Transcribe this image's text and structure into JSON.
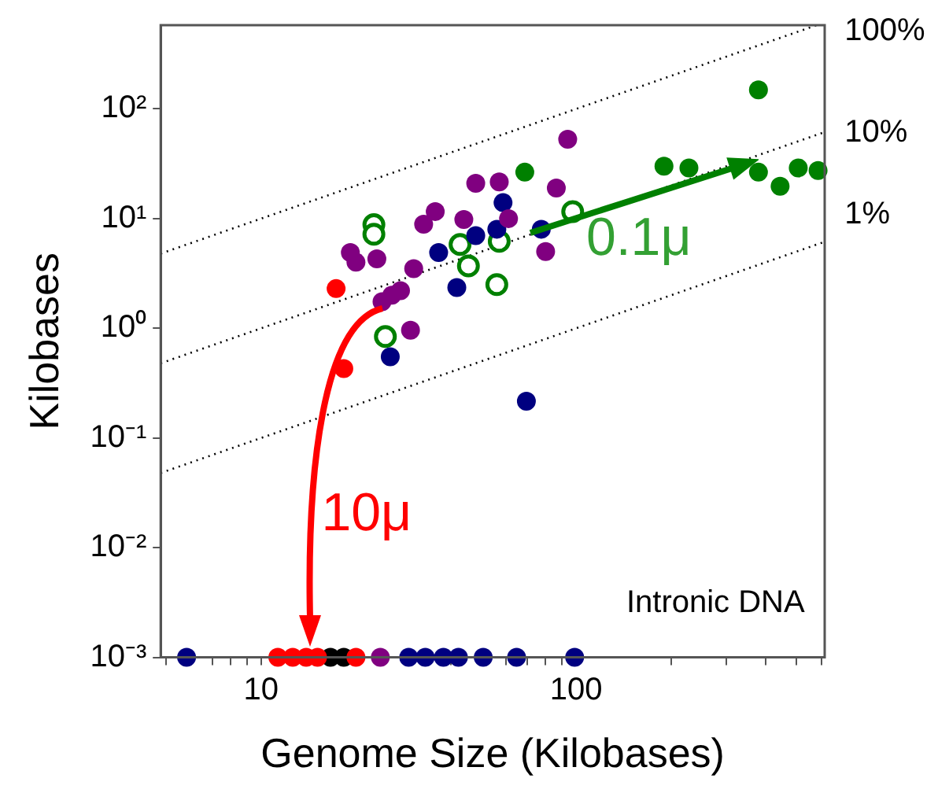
{
  "chart_data": {
    "type": "scatter",
    "xlabel": "Genome Size (Kilobases)",
    "ylabel": "Kilobases",
    "log": "xy",
    "grid": false,
    "legend": false,
    "marker": "circle",
    "xlim": [
      4.8,
      615
    ],
    "ylim": [
      0.001,
      580
    ],
    "xticks": [
      {
        "value": 5,
        "label": null
      },
      {
        "value": 6,
        "label": null
      },
      {
        "value": 7,
        "label": null
      },
      {
        "value": 8,
        "label": null
      },
      {
        "value": 9,
        "label": null
      },
      10,
      {
        "value": 20,
        "label": null
      },
      {
        "value": 30,
        "label": null
      },
      {
        "value": 40,
        "label": null
      },
      {
        "value": 50,
        "label": null
      },
      {
        "value": 60,
        "label": null
      },
      {
        "value": 70,
        "label": null
      },
      {
        "value": 80,
        "label": null
      },
      {
        "value": 90,
        "label": null
      },
      100,
      {
        "value": 200,
        "label": null
      },
      {
        "value": 300,
        "label": null
      },
      {
        "value": 400,
        "label": null
      },
      {
        "value": 500,
        "label": null
      },
      {
        "value": 600,
        "label": null
      }
    ],
    "yticks": [
      {
        "value": 0.001,
        "label": "10⁻³"
      },
      {
        "value": 0.01,
        "label": "10⁻²"
      },
      {
        "value": 0.1,
        "label": "10⁻¹"
      },
      {
        "value": 1,
        "label": "10⁰"
      },
      {
        "value": 10,
        "label": "10¹"
      },
      {
        "value": 100,
        "label": "10²"
      }
    ],
    "series": [
      {
        "type": "line",
        "color": "#000000",
        "line_style": "dotted",
        "marker": "none",
        "x": [
          4.8,
          580
        ],
        "values": [
          4.8,
          580
        ]
      },
      {
        "type": "line",
        "color": "#000000",
        "line_style": "dotted",
        "marker": "none",
        "x": [
          4.8,
          615
        ],
        "values": [
          0.48,
          61.5
        ]
      },
      {
        "type": "line",
        "color": "#000000",
        "line_style": "dotted",
        "marker": "none",
        "x": [
          4.8,
          615
        ],
        "values": [
          0.048,
          6.15
        ]
      },
      {
        "color": "#800080",
        "x": [
          94,
          48,
          57,
          86.5,
          61,
          44,
          35.7,
          32.8,
          80,
          19.2,
          20,
          23.3,
          30.5,
          27.7,
          26,
          24.2,
          29.8,
          23.9
        ],
        "values": [
          53,
          21,
          21.6,
          19,
          10,
          9.8,
          11.6,
          8.9,
          5,
          4.9,
          4,
          4.3,
          3.5,
          2.2,
          2,
          1.75,
          0.96,
          0.001
        ]
      },
      {
        "color": "#000080",
        "x": [
          58.6,
          48,
          56,
          77.5,
          36.6,
          41.8,
          25.7,
          69.5,
          5.8,
          29.4,
          33.2,
          37.9,
          42.3,
          47.8,
          50.7,
          64.7,
          98.9
        ],
        "values": [
          14,
          7,
          8,
          8,
          4.9,
          2.35,
          0.55,
          0.216,
          0.001,
          0.001,
          0.001,
          0.001,
          0.001,
          null,
          0.001,
          0.001,
          0.001
        ]
      },
      {
        "color": "#008000",
        "x": [
          68.7,
          379,
          190,
          228,
          379,
          444,
          507,
          586
        ],
        "values": [
          26.5,
          149,
          30,
          29,
          26.5,
          19.7,
          29,
          27.4
        ]
      },
      {
        "color": "#008000",
        "marker": "circle",
        "x": [
          22.8,
          22.8,
          42.8,
          57,
          45.5,
          56,
          43.8,
          24.8,
          97.5
        ],
        "values": [
          8.8,
          7.2,
          5.8,
          6.2,
          3.7,
          2.5,
          null,
          0.84,
          11.6
        ]
      },
      {
        "color": "#ff0000",
        "x": [
          17.3,
          18.3,
          11.3,
          12.6,
          13.9,
          15.1,
          20
        ],
        "values": [
          2.3,
          0.43,
          0.001,
          0.001,
          0.001,
          0.001,
          0.001
        ]
      },
      {
        "color": "#000000",
        "x": [
          16.6,
          18.3
        ],
        "values": [
          0.001,
          0.001
        ]
      }
    ],
    "annotations": [
      "100%",
      "10%",
      "1%",
      "0.1μ",
      "10μ",
      "Intronic DNA"
    ]
  }
}
